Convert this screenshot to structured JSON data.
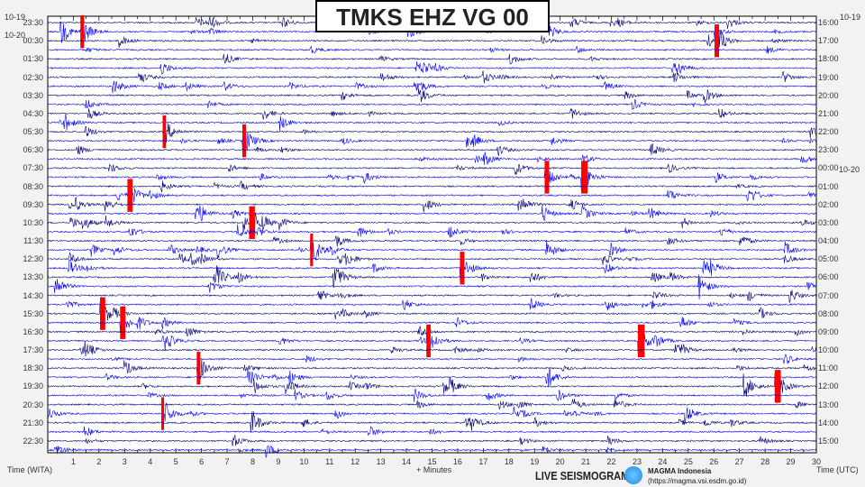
{
  "title": "TMKS EHZ VG 00",
  "left_dates": {
    "top": "10-19",
    "second": "10-20"
  },
  "right_dates": {
    "top": "10-19",
    "mid": "10-20"
  },
  "left_times": [
    "23:30",
    "00:30",
    "01:30",
    "02:30",
    "03:30",
    "04:30",
    "05:30",
    "06:30",
    "07:30",
    "08:30",
    "09:30",
    "10:30",
    "11:30",
    "12:30",
    "13:30",
    "14:30",
    "15:30",
    "16:30",
    "17:30",
    "18:30",
    "19:30",
    "20:30",
    "21:30",
    "22:30"
  ],
  "right_times": [
    "16:00",
    "17:00",
    "18:00",
    "19:00",
    "20:00",
    "21:00",
    "22:00",
    "23:00",
    "00:00",
    "01:00",
    "02:00",
    "03:00",
    "04:00",
    "05:00",
    "06:00",
    "07:00",
    "08:00",
    "09:00",
    "10:00",
    "11:00",
    "12:00",
    "13:00",
    "14:00",
    "15:00"
  ],
  "x_ticks": [
    "1",
    "2",
    "3",
    "4",
    "5",
    "6",
    "7",
    "8",
    "9",
    "10",
    "11",
    "12",
    "13",
    "14",
    "15",
    "16",
    "17",
    "18",
    "19",
    "20",
    "21",
    "22",
    "23",
    "24",
    "25",
    "26",
    "27",
    "28",
    "29",
    "30"
  ],
  "x_axis_left": "Time (WITA)",
  "x_axis_center": "+ Minutes",
  "x_axis_right": "Time (UTC)",
  "footer": {
    "live": "LIVE SEISMOGRAM",
    "org": "MAGMA Indonesia",
    "url": "(https://magma.vsi.esdm.go.id)"
  },
  "colors": {
    "trace_a": "#00007a",
    "trace_b": "#0000ff",
    "clip": "#ff0000"
  }
}
